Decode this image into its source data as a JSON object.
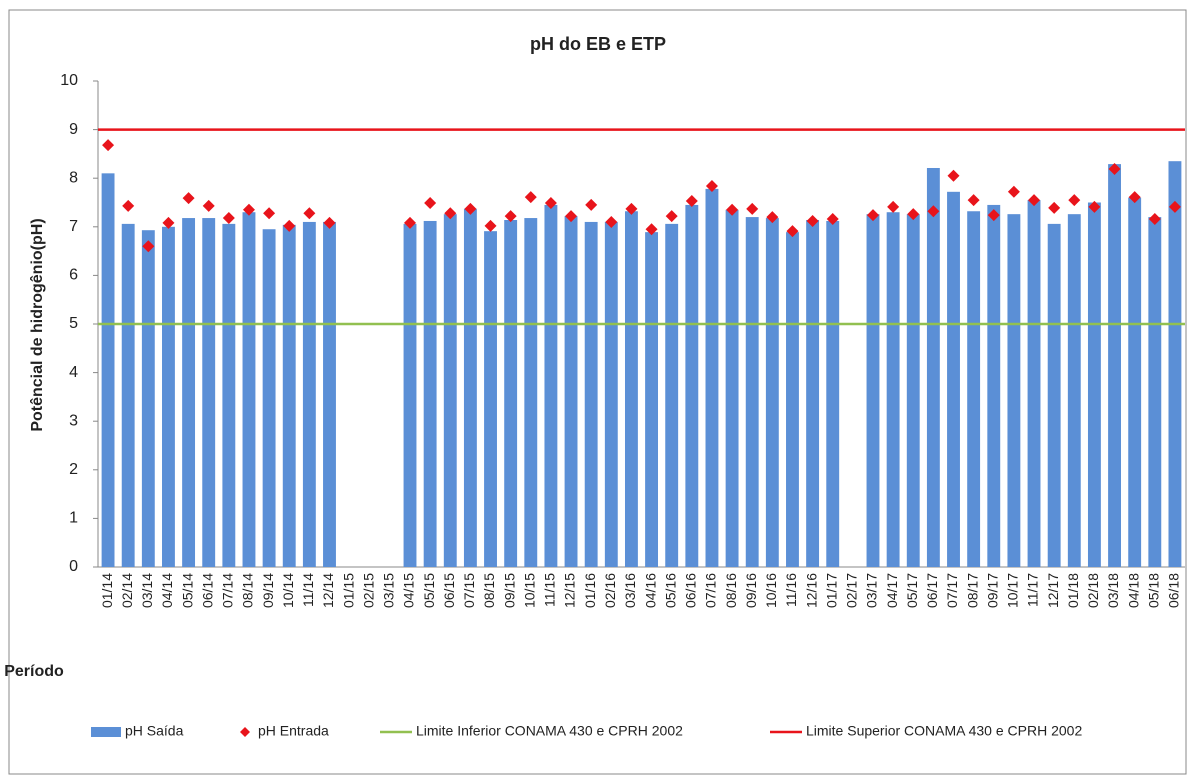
{
  "chart_data": {
    "type": "bar",
    "title": "pH do EB e ETP",
    "x_label": "Período",
    "y_label": "Potêncial de hidrogênio(pH)",
    "categories": [
      "01/14",
      "02/14",
      "03/14",
      "04/14",
      "05/14",
      "06/14",
      "07/14",
      "08/14",
      "09/14",
      "10/14",
      "11/14",
      "12/14",
      "01/15",
      "02/15",
      "03/15",
      "04/15",
      "05/15",
      "06/15",
      "07/15",
      "08/15",
      "09/15",
      "10/15",
      "11/15",
      "12/15",
      "01/16",
      "02/16",
      "03/16",
      "04/16",
      "05/16",
      "06/16",
      "07/16",
      "08/16",
      "09/16",
      "10/16",
      "11/16",
      "12/16",
      "01/17",
      "02/17",
      "03/17",
      "04/17",
      "05/17",
      "06/17",
      "07/17",
      "08/17",
      "09/17",
      "10/17",
      "11/17",
      "12/17",
      "01/18",
      "02/18",
      "03/18",
      "04/18",
      "05/18",
      "06/18"
    ],
    "series": [
      {
        "name": "pH Saída",
        "type": "bar",
        "color": "#5b8fd6",
        "values": [
          8.1,
          7.06,
          6.93,
          7.0,
          7.18,
          7.18,
          7.06,
          7.3,
          6.95,
          7.04,
          7.1,
          7.1,
          null,
          null,
          null,
          7.06,
          7.12,
          7.26,
          7.37,
          6.91,
          7.14,
          7.18,
          7.45,
          7.22,
          7.1,
          7.1,
          7.32,
          6.89,
          7.06,
          7.45,
          7.78,
          7.35,
          7.2,
          7.18,
          6.89,
          7.14,
          7.12,
          null,
          7.26,
          7.3,
          7.26,
          8.21,
          7.72,
          7.32,
          7.45,
          7.26,
          7.55,
          7.06,
          7.26,
          7.5,
          8.29,
          7.6,
          7.2,
          8.35
        ]
      },
      {
        "name": "pH Entrada",
        "type": "scatter",
        "color": "#e8141b",
        "values": [
          8.68,
          7.43,
          6.6,
          7.08,
          7.59,
          7.43,
          7.18,
          7.35,
          7.28,
          7.02,
          7.28,
          7.08,
          null,
          null,
          null,
          7.08,
          7.49,
          7.28,
          7.37,
          7.02,
          7.22,
          7.61,
          7.49,
          7.22,
          7.45,
          7.1,
          7.37,
          6.95,
          7.22,
          7.53,
          7.84,
          7.35,
          7.37,
          7.2,
          6.91,
          7.12,
          7.16,
          null,
          7.24,
          7.41,
          7.26,
          7.32,
          8.05,
          7.55,
          7.24,
          7.72,
          7.55,
          7.39,
          7.55,
          7.41,
          8.19,
          7.61,
          7.16,
          7.41
        ]
      },
      {
        "name": "Limite Inferior CONAMA 430 e CPRH 2002",
        "type": "line",
        "color": "#92c050",
        "value": 5
      },
      {
        "name": "Limite Superior CONAMA 430 e CPRH 2002",
        "type": "line",
        "color": "#e8141b",
        "value": 9
      }
    ],
    "ylim": [
      0,
      10
    ],
    "yticks": [
      0,
      1,
      2,
      3,
      4,
      5,
      6,
      7,
      8,
      9,
      10
    ],
    "grid": false,
    "legend": "bottom"
  }
}
